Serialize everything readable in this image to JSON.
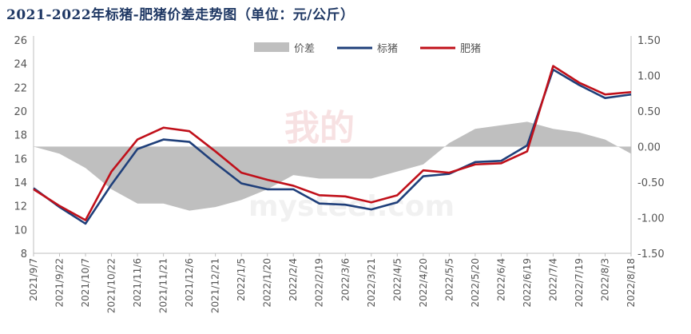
{
  "chart_data": {
    "type": "line",
    "title": "2021-2022年标猪-肥猪价差走势图（单位：元/公斤）",
    "x": [
      "2021/9/7",
      "2021/9/22",
      "2021/10/7",
      "2021/10/22",
      "2021/11/6",
      "2021/11/21",
      "2021/12/6",
      "2021/12/21",
      "2022/1/5",
      "2022/1/20",
      "2022/2/4",
      "2022/2/19",
      "2022/3/6",
      "2022/3/21",
      "2022/4/5",
      "2022/4/20",
      "2022/5/5",
      "2022/5/20",
      "2022/6/4",
      "2022/6/19",
      "2022/7/4",
      "2022/7/19",
      "2022/8/3",
      "2022/8/18"
    ],
    "y_left_ticks": [
      "26",
      "24",
      "22",
      "20",
      "18",
      "16",
      "14",
      "12",
      "10",
      "8"
    ],
    "y_right_ticks": [
      "1.50",
      "1.00",
      "0.50",
      "0.00",
      "-0.50",
      "-1.00",
      "-1.50"
    ],
    "ylim_left": [
      8,
      26
    ],
    "ylim_right": [
      -1.5,
      1.5
    ],
    "legend_position": "top-center",
    "legend": [
      "价差",
      "标猪",
      "肥猪"
    ],
    "series": [
      {
        "name": "标猪",
        "axis": "left",
        "color": "#1f3f7a",
        "values": [
          13.5,
          11.9,
          10.5,
          13.8,
          16.8,
          17.6,
          17.4,
          15.6,
          13.9,
          13.4,
          13.4,
          12.2,
          12.1,
          11.7,
          12.3,
          14.5,
          14.7,
          15.7,
          15.8,
          17.1,
          23.5,
          22.2,
          21.1,
          21.4
        ]
      },
      {
        "name": "肥猪",
        "axis": "left",
        "color": "#c0101a",
        "values": [
          13.4,
          12.0,
          10.8,
          14.9,
          17.6,
          18.6,
          18.3,
          16.6,
          14.8,
          14.2,
          13.7,
          12.9,
          12.8,
          12.3,
          12.9,
          15.0,
          14.8,
          15.5,
          15.6,
          16.6,
          23.8,
          22.4,
          21.4,
          21.6
        ]
      },
      {
        "name": "价差",
        "axis": "right",
        "type": "area",
        "color": "#bfbfbf",
        "values": [
          0.0,
          -0.1,
          -0.3,
          -0.6,
          -0.8,
          -0.8,
          -0.9,
          -0.85,
          -0.75,
          -0.6,
          -0.4,
          -0.45,
          -0.45,
          -0.45,
          -0.35,
          -0.25,
          0.05,
          0.25,
          0.3,
          0.35,
          0.25,
          0.2,
          0.1,
          -0.1
        ]
      }
    ],
    "watermark": "我的 mysteel.com"
  },
  "colors": {
    "title": "#1f3864",
    "axis": "#bfbfbf",
    "tick_text": "#555555",
    "watermark": "#f2c9cc"
  }
}
